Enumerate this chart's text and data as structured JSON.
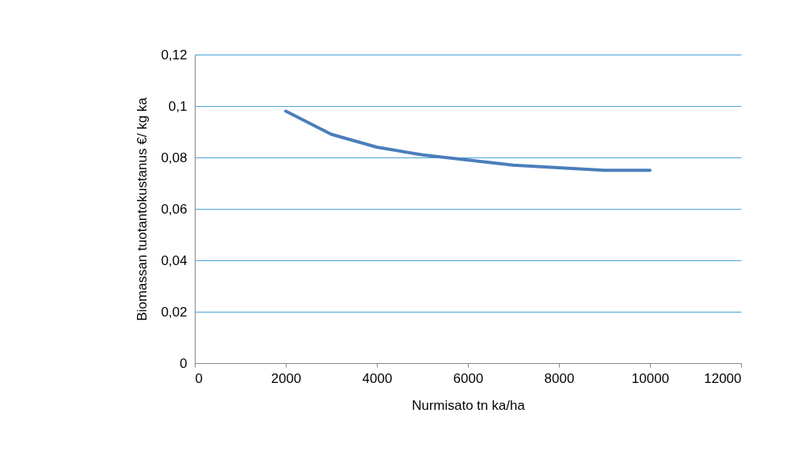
{
  "chart_data": {
    "type": "line",
    "xlabel": "Nurmisato tn ka/ha",
    "ylabel": "Biomassan  tuotantokustanus  €/ kg ka",
    "x": [
      2000,
      3000,
      4000,
      5000,
      6000,
      7000,
      8000,
      9000,
      10000
    ],
    "series": [
      {
        "color": "#4a7ebb",
        "values": [
          0.098,
          0.089,
          0.084,
          0.081,
          0.079,
          0.077,
          0.076,
          0.075,
          0.075
        ]
      }
    ],
    "xlim": [
      0,
      12000
    ],
    "xticks": [
      0,
      2000,
      4000,
      6000,
      8000,
      10000,
      12000
    ],
    "ylim": [
      0,
      0.12
    ],
    "yticks": [
      {
        "value": 0,
        "label": "0"
      },
      {
        "value": 0.02,
        "label": "0,02"
      },
      {
        "value": 0.04,
        "label": "0,04"
      },
      {
        "value": 0.06,
        "label": "0,06"
      },
      {
        "value": 0.08,
        "label": "0,08"
      },
      {
        "value": 0.1,
        "label": "0,1"
      },
      {
        "value": 0.12,
        "label": "0,12"
      }
    ],
    "grid": "y",
    "marker": "none",
    "line_style": "solid"
  }
}
